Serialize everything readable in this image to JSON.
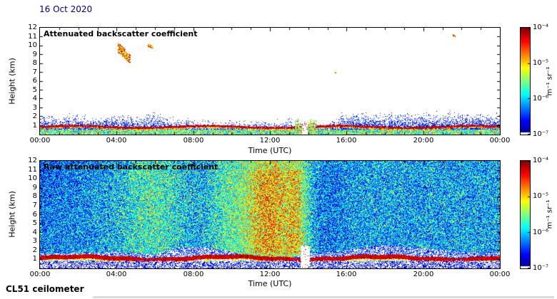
{
  "page": {
    "date_label": "16 Oct 2020",
    "footer_label": "CL51 ceilometer",
    "date_color": "#00008b",
    "background": "#ffffff"
  },
  "chart_data": [
    {
      "type": "heatmap",
      "title": "Attenuated backscatter coefficient",
      "xlabel": "Time (UTC)",
      "ylabel": "Height (km)",
      "x_tick_labels": [
        "00:00",
        "04:00",
        "08:00",
        "12:00",
        "16:00",
        "20:00",
        "00:00"
      ],
      "x_tick_hours": [
        0,
        4,
        8,
        12,
        16,
        20,
        24
      ],
      "xlim_hours": [
        0,
        24
      ],
      "y_tick_labels": [
        "12",
        "11",
        "10",
        "9",
        "8",
        "7",
        "6",
        "5",
        "4",
        "3",
        "2",
        "1"
      ],
      "ylim_km": [
        0,
        12
      ],
      "grid": false,
      "colorbar": {
        "unit_label": "m⁻¹ sr⁻¹",
        "tick_labels": [
          "10⁻⁴",
          "10⁻⁵",
          "10⁻⁶",
          "10⁻⁷"
        ],
        "scale": "log",
        "min": "1e-7",
        "max": "1e-4",
        "colormap": "jet",
        "colormap_stops": [
          "#ffffff",
          "#00008f",
          "#0020ff",
          "#00ffff",
          "#40ff40",
          "#ffff00",
          "#ff8000",
          "#ff0000",
          "#800000"
        ]
      },
      "content": {
        "background_value": "white below colour-scale minimum",
        "boundary_layer": {
          "description": "aerosol layer: dense mixed colours below 0.5 km, dark-red core near 0.8 km, blue speckle up to ragged layer top",
          "core_km": 0.8,
          "top_km_keypoints": [
            [
              0,
              2.1
            ],
            [
              1,
              2.0
            ],
            [
              2,
              2.3
            ],
            [
              3,
              2.0
            ],
            [
              4,
              2.2
            ],
            [
              5,
              2.0
            ],
            [
              6,
              2.4
            ],
            [
              7,
              1.9
            ],
            [
              8,
              1.6
            ],
            [
              9,
              1.5
            ],
            [
              10,
              1.4
            ],
            [
              11,
              1.5
            ],
            [
              12,
              1.5
            ],
            [
              13,
              1.7
            ],
            [
              13.5,
              1.3
            ],
            [
              14,
              1.0
            ],
            [
              15,
              1.2
            ],
            [
              15.7,
              2.3
            ],
            [
              16.5,
              2.4
            ],
            [
              17.5,
              2.2
            ],
            [
              18.5,
              2.5
            ],
            [
              19.5,
              2.3
            ],
            [
              20.5,
              2.4
            ],
            [
              21.5,
              2.6
            ],
            [
              22.5,
              2.3
            ],
            [
              23.5,
              2.4
            ],
            [
              24,
              2.3
            ]
          ]
        },
        "clouds": [
          {
            "time_h": 4.25,
            "height_km": 9.4,
            "dur_h": 0.35,
            "depth_km": 1.1,
            "n": 260
          },
          {
            "time_h": 4.55,
            "height_km": 8.7,
            "dur_h": 0.28,
            "depth_km": 0.9,
            "n": 150
          },
          {
            "time_h": 5.75,
            "height_km": 9.9,
            "dur_h": 0.22,
            "depth_km": 0.35,
            "n": 70
          },
          {
            "time_h": 21.6,
            "height_km": 11.1,
            "dur_h": 0.1,
            "depth_km": 0.2,
            "n": 12
          },
          {
            "time_h": 15.4,
            "height_km": 6.9,
            "dur_h": 0.06,
            "depth_km": 0.15,
            "n": 6
          }
        ],
        "precip_event": {
          "start_h": 13.3,
          "end_h": 14.4,
          "top_km": 1.7,
          "gap_h": [
            13.65,
            13.95
          ]
        }
      }
    },
    {
      "type": "heatmap",
      "title": "Raw attenuated backscatter coefficient",
      "xlabel": "Time (UTC)",
      "ylabel": "Height (km)",
      "x_tick_labels": [
        "00:00",
        "04:00",
        "08:00",
        "12:00",
        "16:00",
        "20:00",
        "00:00"
      ],
      "x_tick_hours": [
        0,
        4,
        8,
        12,
        16,
        20,
        24
      ],
      "xlim_hours": [
        0,
        24
      ],
      "y_tick_labels": [
        "12",
        "11",
        "10",
        "9",
        "8",
        "7",
        "6",
        "5",
        "4",
        "3",
        "2",
        "1"
      ],
      "ylim_km": [
        0,
        12
      ],
      "grid": false,
      "colorbar": {
        "unit_label": "m⁻¹ sr⁻¹",
        "tick_labels": [
          "10⁻⁴",
          "10⁻⁵",
          "10⁻⁶",
          "10⁻⁷"
        ],
        "scale": "log",
        "min": "1e-7",
        "max": "1e-4",
        "colormap": "jet",
        "colormap_stops": [
          "#ffffff",
          "#00008f",
          "#0020ff",
          "#00ffff",
          "#40ff40",
          "#ffff00",
          "#ff8000",
          "#ff0000",
          "#800000"
        ]
      },
      "content": {
        "noise": "dense blue-green speckle over the full 0-12 km range (raw signal noise)",
        "plumes": [
          {
            "center_h": 5.9,
            "width_h": 1.1,
            "strength": 0.13
          },
          {
            "center_h": 9.6,
            "width_h": 0.6,
            "strength": 0.1
          },
          {
            "center_h": 11.4,
            "width_h": 0.9,
            "strength": 0.24
          },
          {
            "center_h": 12.5,
            "width_h": 1.0,
            "strength": 0.27
          },
          {
            "center_h": 13.4,
            "width_h": 0.35,
            "strength": 0.18
          },
          {
            "center_h": 15.0,
            "width_h": 0.8,
            "strength": -0.08
          }
        ],
        "surface_layer": {
          "core_km": 1.1,
          "white_top_km": 0.65,
          "clear_above_km_keypoints": [
            [
              0,
              1.6
            ],
            [
              4,
              1.8
            ],
            [
              6,
              1.5
            ],
            [
              7,
              2.2
            ],
            [
              8,
              2.4
            ],
            [
              9,
              2.2
            ],
            [
              10,
              1.8
            ],
            [
              11,
              1.2
            ],
            [
              13,
              1.2
            ],
            [
              14,
              1.6
            ],
            [
              15,
              1.8
            ],
            [
              16,
              2.0
            ],
            [
              17,
              2.4
            ],
            [
              18,
              2.6
            ],
            [
              19,
              2.4
            ],
            [
              20,
              2.2
            ],
            [
              21,
              2.0
            ],
            [
              22,
              1.8
            ],
            [
              24,
              1.7
            ]
          ],
          "gap_h": [
            13.6,
            14.05
          ]
        },
        "cool_region": {
          "before_h": 4,
          "strength": 0.12
        }
      }
    }
  ]
}
